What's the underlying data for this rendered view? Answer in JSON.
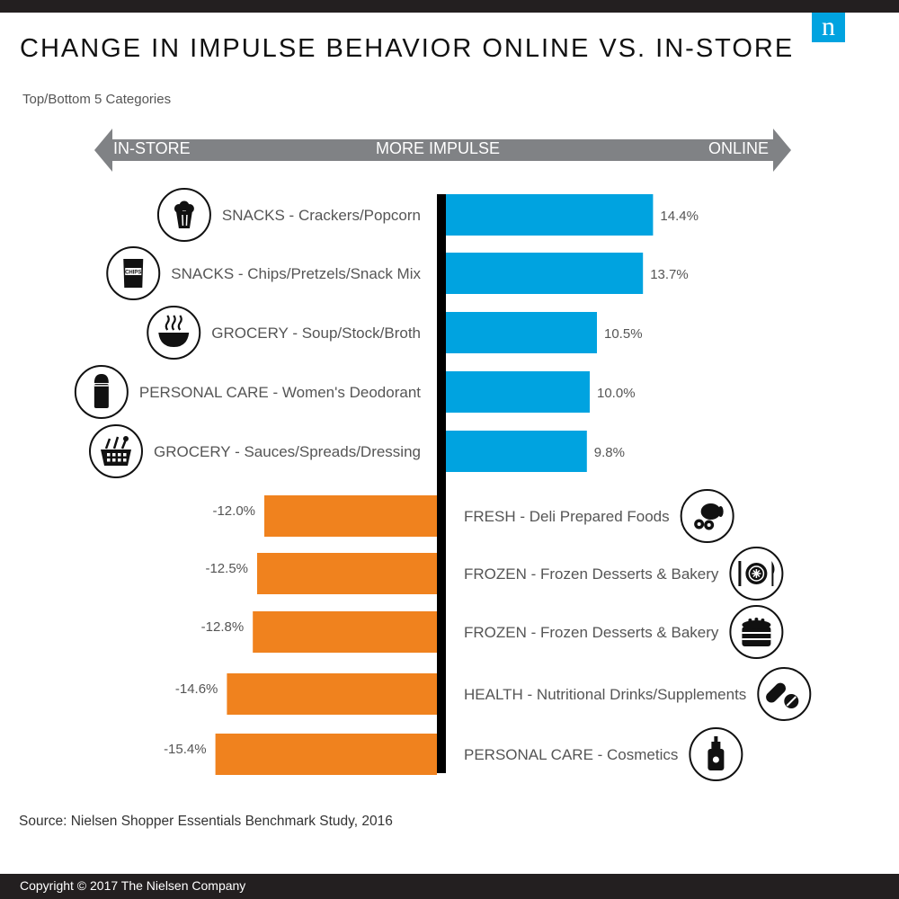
{
  "header": {
    "title": "CHANGE IN IMPULSE BEHAVIOR ONLINE VS. IN-STORE",
    "subtitle": "Top/Bottom 5 Categories",
    "logo_letter": "n"
  },
  "arrow": {
    "left_label": "IN-STORE",
    "center_label": "MORE IMPULSE",
    "right_label": "ONLINE"
  },
  "colors": {
    "positive": "#00a3e0",
    "negative": "#f0821e",
    "axis": "#000000",
    "arrow": "#808285"
  },
  "chart_data": {
    "type": "bar",
    "orientation": "horizontal",
    "categories": [
      "SNACKS - Crackers/Popcorn",
      "SNACKS - Chips/Pretzels/Snack Mix",
      "GROCERY - Soup/Stock/Broth",
      "PERSONAL CARE - Women's Deodorant",
      "GROCERY - Sauces/Spreads/Dressing",
      "FRESH - Deli Prepared Foods",
      "FROZEN - Frozen Desserts & Bakery",
      "FROZEN - Frozen Desserts & Bakery",
      "HEALTH - Nutritional Drinks/Supplements",
      "PERSONAL CARE - Cosmetics"
    ],
    "values": [
      14.4,
      13.7,
      10.5,
      10.0,
      9.8,
      -12.0,
      -12.5,
      -12.8,
      -14.6,
      -15.4
    ],
    "value_labels": [
      "14.4%",
      "13.7%",
      "10.5%",
      "10.0%",
      "9.8%",
      "-12.0%",
      "-12.5%",
      "-12.8%",
      "-14.6%",
      "-15.4%"
    ],
    "icons": [
      "popcorn-icon",
      "chips-bag-icon",
      "soup-bowl-icon",
      "deodorant-icon",
      "grocery-basket-icon",
      "deli-meat-icon",
      "plate-utensils-icon",
      "layer-cake-icon",
      "pills-icon",
      "cosmetics-bottle-icon"
    ],
    "legend_position": "none",
    "grid": false
  },
  "source": "Source: Nielsen Shopper Essentials Benchmark Study, 2016",
  "copyright": "Copyright © 2017 The Nielsen Company"
}
